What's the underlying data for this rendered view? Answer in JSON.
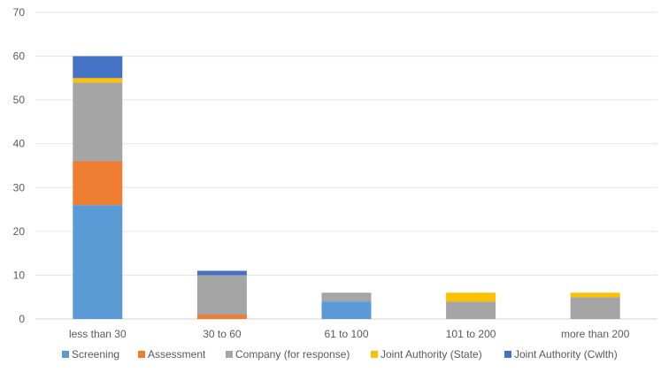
{
  "chart_data": {
    "type": "bar",
    "stacked": true,
    "categories": [
      "less than 30",
      "30 to 60",
      "61 to 100",
      "101 to 200",
      "more than 200"
    ],
    "series": [
      {
        "name": "Screening",
        "color": "#5B9BD5",
        "values": [
          26,
          0,
          4,
          0,
          0
        ]
      },
      {
        "name": "Assessment",
        "color": "#ED7D31",
        "values": [
          10,
          1,
          0,
          0,
          0
        ]
      },
      {
        "name": "Company (for response)",
        "color": "#A5A5A5",
        "values": [
          18,
          9,
          2,
          4,
          5
        ]
      },
      {
        "name": "Joint Authority (State)",
        "color": "#FFC000",
        "values": [
          1,
          0,
          0,
          2,
          1
        ]
      },
      {
        "name": "Joint Authority (Cwlth)",
        "color": "#4472C4",
        "values": [
          5,
          1,
          0,
          0,
          0
        ]
      }
    ],
    "ylim": [
      0,
      70
    ],
    "yticks": [
      0,
      10,
      20,
      30,
      40,
      50,
      60,
      70
    ],
    "grid": true,
    "legend": "bottom"
  }
}
